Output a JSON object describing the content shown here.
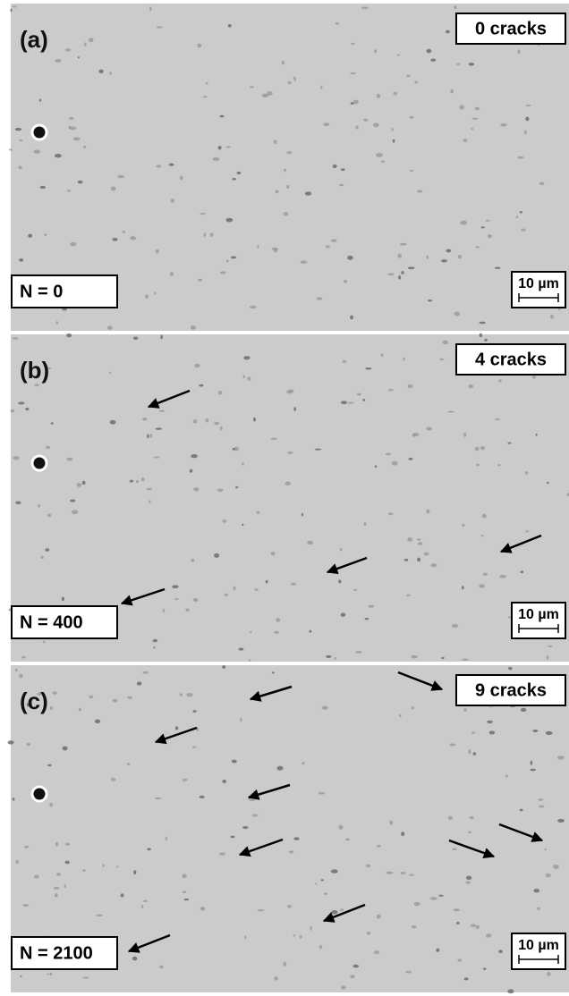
{
  "panels": [
    {
      "label": "(a)",
      "cracks": "0 cracks",
      "cycles": "N = 0",
      "scale": "10 µm"
    },
    {
      "label": "(b)",
      "cracks": "4 cracks",
      "cycles": "N = 400",
      "scale": "10 µm"
    },
    {
      "label": "(c)",
      "cracks": "9 cracks",
      "cycles": "N = 2100",
      "scale": "10 µm"
    }
  ]
}
